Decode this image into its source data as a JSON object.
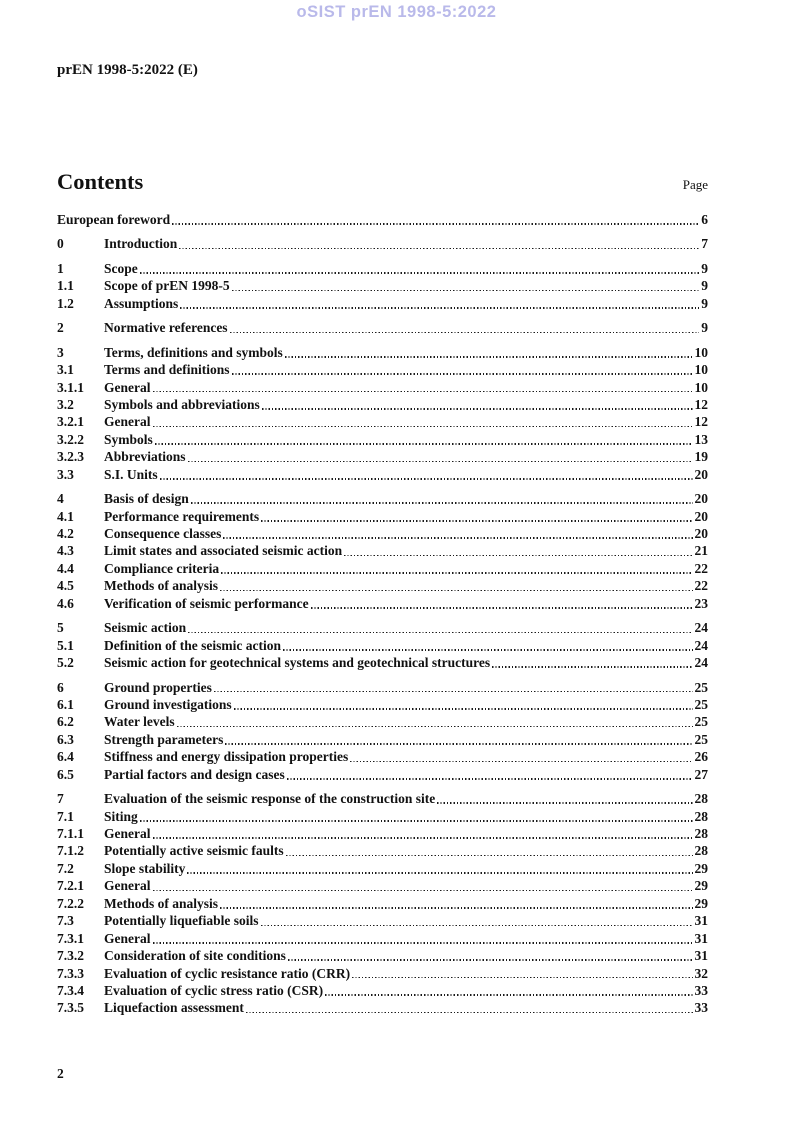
{
  "watermark": {
    "text": "oSIST prEN 1998-5:2022",
    "color": "#b9b9ea"
  },
  "doc_id": "prEN 1998-5:2022 (E)",
  "contents": {
    "heading": "Contents",
    "page_column_label": "Page"
  },
  "toc_groups": [
    [
      {
        "num": "",
        "title": "European foreword",
        "page": "6"
      }
    ],
    [
      {
        "num": "0",
        "title": "Introduction",
        "page": "7"
      }
    ],
    [
      {
        "num": "1",
        "title": "Scope",
        "page": "9"
      },
      {
        "num": "1.1",
        "title": "Scope of prEN 1998-5",
        "page": "9"
      },
      {
        "num": "1.2",
        "title": "Assumptions",
        "page": "9"
      }
    ],
    [
      {
        "num": "2",
        "title": "Normative references",
        "page": "9"
      }
    ],
    [
      {
        "num": "3",
        "title": "Terms, definitions and symbols",
        "page": "10"
      },
      {
        "num": "3.1",
        "title": "Terms and definitions",
        "page": "10"
      },
      {
        "num": "3.1.1",
        "title": "General",
        "page": "10"
      },
      {
        "num": "3.2",
        "title": "Symbols and abbreviations",
        "page": "12"
      },
      {
        "num": "3.2.1",
        "title": "General",
        "page": "12"
      },
      {
        "num": "3.2.2",
        "title": "Symbols",
        "page": "13"
      },
      {
        "num": "3.2.3",
        "title": "Abbreviations",
        "page": "19"
      },
      {
        "num": "3.3",
        "title": "S.I. Units",
        "page": "20"
      }
    ],
    [
      {
        "num": "4",
        "title": "Basis of design",
        "page": "20"
      },
      {
        "num": "4.1",
        "title": "Performance requirements",
        "page": "20"
      },
      {
        "num": "4.2",
        "title": "Consequence classes",
        "page": "20"
      },
      {
        "num": "4.3",
        "title": "Limit states and associated seismic action",
        "page": "21"
      },
      {
        "num": "4.4",
        "title": "Compliance criteria",
        "page": "22"
      },
      {
        "num": "4.5",
        "title": "Methods of analysis",
        "page": "22"
      },
      {
        "num": "4.6",
        "title": "Verification of seismic performance",
        "page": "23"
      }
    ],
    [
      {
        "num": "5",
        "title": "Seismic action",
        "page": "24"
      },
      {
        "num": "5.1",
        "title": "Definition of the seismic action",
        "page": "24"
      },
      {
        "num": "5.2",
        "title": "Seismic action for geotechnical systems and geotechnical structures",
        "page": "24"
      }
    ],
    [
      {
        "num": "6",
        "title": "Ground properties",
        "page": "25"
      },
      {
        "num": "6.1",
        "title": "Ground investigations",
        "page": "25"
      },
      {
        "num": "6.2",
        "title": "Water levels",
        "page": "25"
      },
      {
        "num": "6.3",
        "title": "Strength parameters",
        "page": "25"
      },
      {
        "num": "6.4",
        "title": "Stiffness and energy dissipation properties",
        "page": "26"
      },
      {
        "num": "6.5",
        "title": "Partial factors and design cases",
        "page": "27"
      }
    ],
    [
      {
        "num": "7",
        "title": "Evaluation of the seismic response of the construction site",
        "page": "28"
      },
      {
        "num": "7.1",
        "title": "Siting",
        "page": "28"
      },
      {
        "num": "7.1.1",
        "title": "General",
        "page": "28"
      },
      {
        "num": "7.1.2",
        "title": "Potentially active seismic faults",
        "page": "28"
      },
      {
        "num": "7.2",
        "title": "Slope stability",
        "page": "29"
      },
      {
        "num": "7.2.1",
        "title": "General",
        "page": "29"
      },
      {
        "num": "7.2.2",
        "title": "Methods of analysis",
        "page": "29"
      },
      {
        "num": "7.3",
        "title": "Potentially liquefiable soils",
        "page": "31"
      },
      {
        "num": "7.3.1",
        "title": "General",
        "page": "31"
      },
      {
        "num": "7.3.2",
        "title": "Consideration of site conditions",
        "page": "31"
      },
      {
        "num": "7.3.3",
        "title": "Evaluation of cyclic resistance ratio (CRR)",
        "page": "32"
      },
      {
        "num": "7.3.4",
        "title": "Evaluation of cyclic stress ratio (CSR)",
        "page": "33"
      },
      {
        "num": "7.3.5",
        "title": "Liquefaction assessment",
        "page": "33"
      }
    ]
  ],
  "footer": {
    "page_number": "2"
  }
}
